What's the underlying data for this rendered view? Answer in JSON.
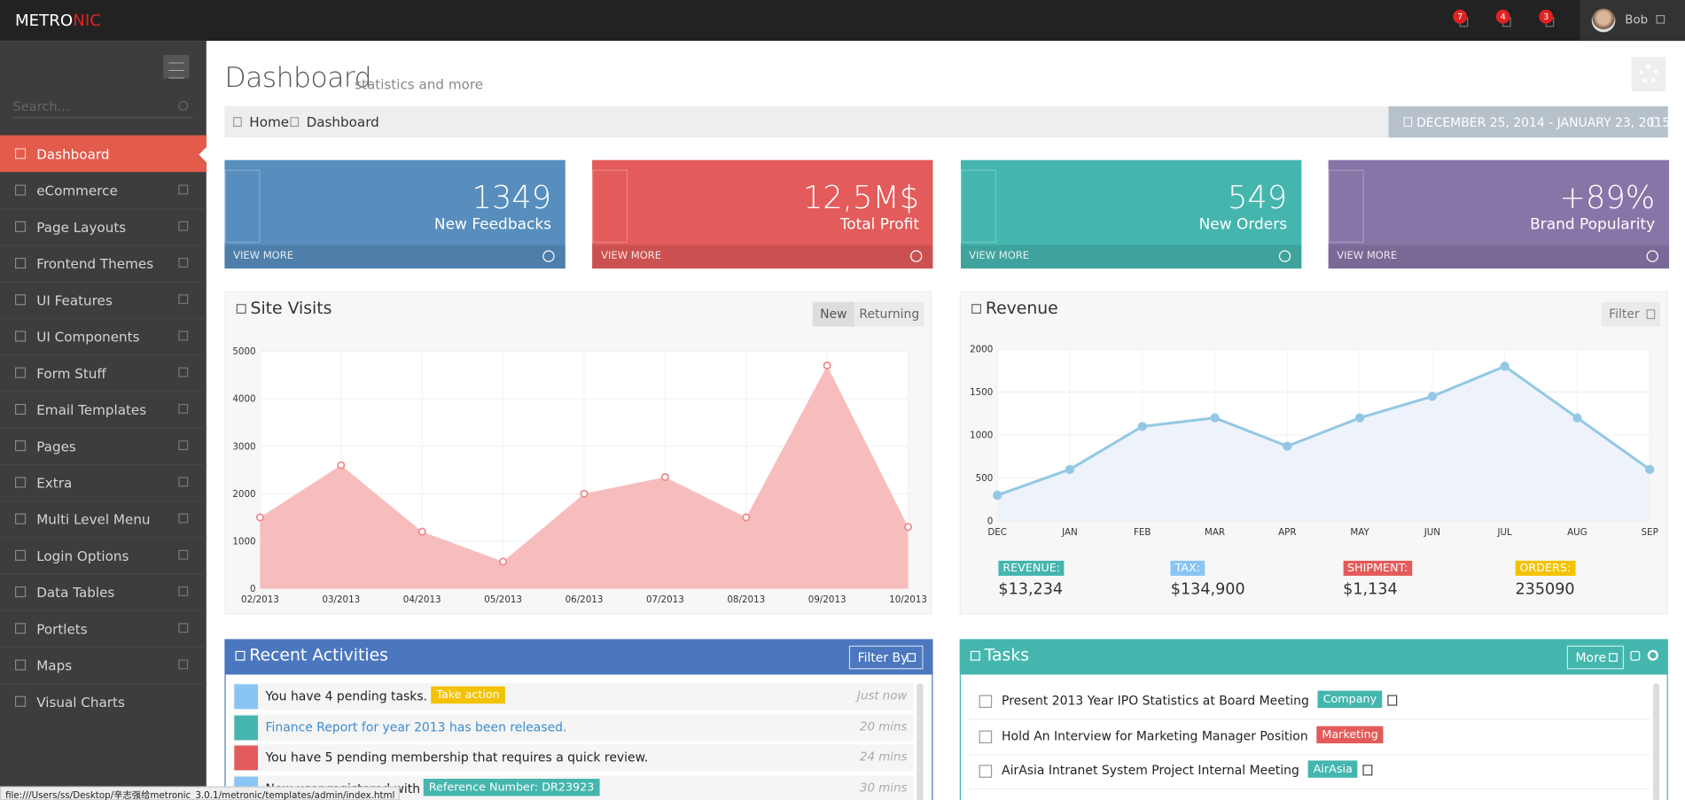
{
  "header": {
    "logo": [
      "METRO",
      "NIC"
    ],
    "notifications": [
      7,
      4,
      3
    ],
    "user": "Bob"
  },
  "sidebar": {
    "search_placeholder": "Search...",
    "menu": [
      "Dashboard",
      "eCommerce",
      "Page Layouts",
      "Frontend Themes",
      "UI Features",
      "UI Components",
      "Form Stuff",
      "Email Templates",
      "Pages",
      "Extra",
      "Multi Level Menu",
      "Login Options",
      "Data Tables",
      "Portlets",
      "Maps",
      "Visual Charts"
    ]
  },
  "page": {
    "title": "Dashboard",
    "subtitle": "statistics and more"
  },
  "breadcrumb": [
    "Home",
    "Dashboard"
  ],
  "date_range": "DECEMBER 25, 2014 - JANUARY 23, 2015",
  "stats": [
    {
      "value": 1349,
      "label": "New Feedbacks",
      "link": "VIEW MORE",
      "color": "#578ebe"
    },
    {
      "value": "12,5M$",
      "label": "Total Profit",
      "link": "VIEW MORE",
      "color": "#e35b5a"
    },
    {
      "value": 549,
      "label": "New Orders",
      "link": "VIEW MORE",
      "color": "#44b6ae"
    },
    {
      "value": "+89%",
      "label": "Brand Popularity",
      "link": "VIEW MORE",
      "color": "#8775a7"
    }
  ],
  "site_visits": {
    "title": "Site Visits",
    "buttons": [
      "New",
      "Returning"
    ],
    "chart_data": {
      "type": "area",
      "categories": [
        "02/2013",
        "03/2013",
        "04/2013",
        "05/2013",
        "06/2013",
        "07/2013",
        "08/2013",
        "09/2013",
        "10/2013"
      ],
      "values": [
        1500,
        2600,
        1200,
        570,
        2000,
        2350,
        1500,
        4700,
        1300
      ],
      "ylim": [
        0,
        5000
      ],
      "yticks": [
        0,
        1000,
        2000,
        3000,
        4000,
        5000
      ],
      "color": "#f7bdbd",
      "point_color": "#f08a8a",
      "grid": true
    }
  },
  "revenue": {
    "title": "Revenue",
    "button": "Filter",
    "chart_data": {
      "type": "line",
      "categories": [
        "DEC",
        "JAN",
        "FEB",
        "MAR",
        "APR",
        "MAY",
        "JUN",
        "JUL",
        "AUG",
        "SEP"
      ],
      "values": [
        300,
        600,
        1100,
        1200,
        870,
        1200,
        1450,
        1800,
        1200,
        600
      ],
      "ylim": [
        0,
        2000
      ],
      "yticks": [
        0,
        500,
        1000,
        1500,
        2000
      ],
      "color": "#93c8e4",
      "fill": "#eef3fb",
      "grid": true
    },
    "totals": [
      {
        "label": "REVENUE:",
        "value": "$13,234",
        "color": "#44b6ae"
      },
      {
        "label": "TAX:",
        "value": "$134,900",
        "color": "#89c4f4"
      },
      {
        "label": "SHIPMENT:",
        "value": "$1,134",
        "color": "#e35b5a"
      },
      {
        "label": "ORDERS:",
        "value": "235090",
        "color": "#f3c200"
      }
    ]
  },
  "activities": {
    "title": "Recent Activities",
    "button": "Filter By",
    "items": [
      {
        "text": "You have 4 pending tasks.",
        "tag": "Take action",
        "tag_color": "#f3c200",
        "time": "Just now",
        "color": "#89c4f4"
      },
      {
        "text": "Finance Report for year 2013 has been released.",
        "time": "20 mins",
        "color": "#44b6ae"
      },
      {
        "text": "You have 5 pending membership that requires a quick review.",
        "time": "24 mins",
        "color": "#e35b5a"
      },
      {
        "text": "New user registered with",
        "tag": "Reference Number: DR23923",
        "tag_color": "#44b6ae",
        "time": "30 mins",
        "color": "#89c4f4"
      }
    ]
  },
  "tasks": {
    "title": "Tasks",
    "button": "More",
    "items": [
      {
        "text": "Present 2013 Year IPO Statistics at Board Meeting",
        "tag": "Company",
        "tag_color": "#44b6ae"
      },
      {
        "text": "Hold An Interview for Marketing Manager Position",
        "tag": "Marketing",
        "tag_color": "#e35b5a"
      },
      {
        "text": "AirAsia Intranet System Project Internal Meeting",
        "tag": "AirAsia",
        "tag_color": "#44b6ae"
      }
    ]
  },
  "status_bar": "file:///Users/ss/Desktop/辛志强给metronic_3.0.1/metronic/templates/admin/index.html"
}
